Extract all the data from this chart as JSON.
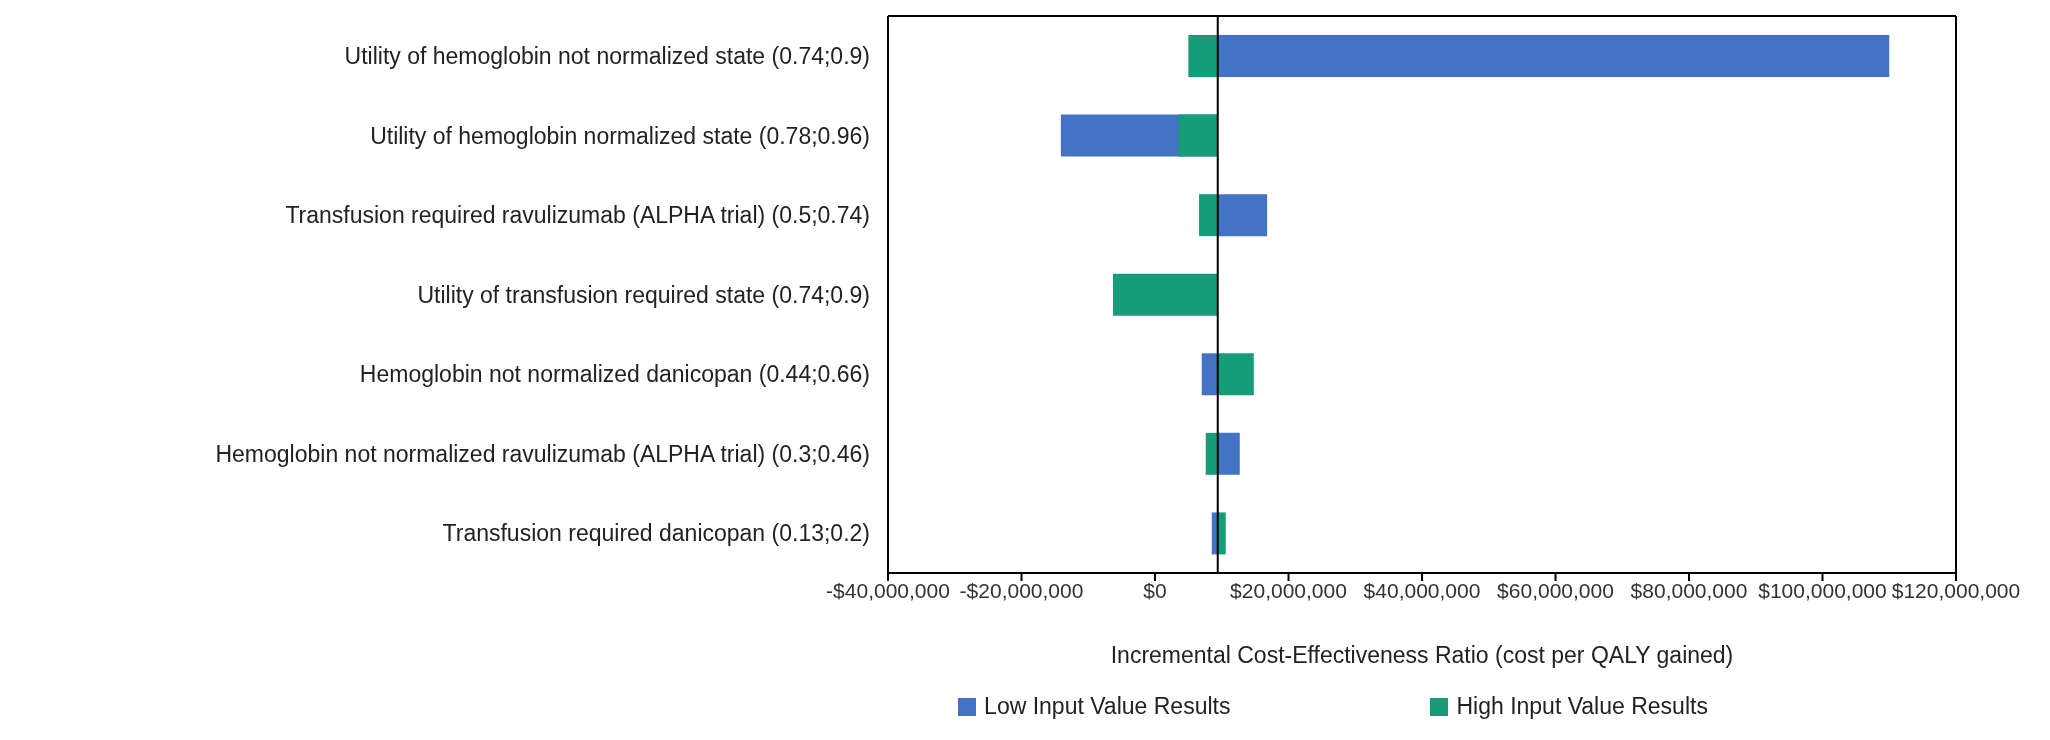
{
  "chart_data": {
    "type": "bar",
    "orientation": "horizontal",
    "xlabel": "Incremental Cost-Effectiveness Ratio (cost per QALY gained)",
    "categories": [
      "Utility of hemoglobin not normalized state (0.74;0.9)",
      "Utility of hemoglobin normalized state (0.78;0.96)",
      "Transfusion required ravulizumab (ALPHA trial) (0.5;0.74)",
      "Utility of transfusion required state (0.74;0.9)",
      "Hemoglobin not normalized danicopan (0.44;0.66)",
      "Hemoglobin not normalized ravulizumab (ALPHA trial) (0.3;0.46)",
      "Transfusion required danicopan (0.13;0.2)"
    ],
    "series": [
      {
        "name": "Low Input Value Results",
        "color": "#4472c4",
        "base": [
          9400000,
          9400000,
          9400000,
          null,
          9400000,
          9400000,
          9400000
        ],
        "values": [
          100600000,
          -23500000,
          7400000,
          null,
          -2400000,
          3300000,
          -900000
        ]
      },
      {
        "name": "High Input Value Results",
        "color": "#169c78",
        "base": [
          9400000,
          9400000,
          9400000,
          9400000,
          9400000,
          9400000,
          9400000
        ],
        "values": [
          -4400000,
          -5900000,
          -2800000,
          -15700000,
          5400000,
          -1800000,
          1200000
        ]
      }
    ],
    "xlim": [
      -40000000,
      120000000
    ],
    "xticks": [
      {
        "value": -40000000,
        "label": "-$40,000,000"
      },
      {
        "value": -20000000,
        "label": "-$20,000,000"
      },
      {
        "value": 0,
        "label": "$0"
      },
      {
        "value": 20000000,
        "label": "$20,000,000"
      },
      {
        "value": 40000000,
        "label": "$40,000,000"
      },
      {
        "value": 60000000,
        "label": "$60,000,000"
      },
      {
        "value": 80000000,
        "label": "$80,000,000"
      },
      {
        "value": 100000000,
        "label": "$100,000,000"
      },
      {
        "value": 120000000,
        "label": "$120,000,000"
      }
    ],
    "ref_lines": [
      {
        "axis": "x",
        "value": 9400000,
        "color": "#000000"
      }
    ],
    "grid": false,
    "legend": "bottom"
  }
}
